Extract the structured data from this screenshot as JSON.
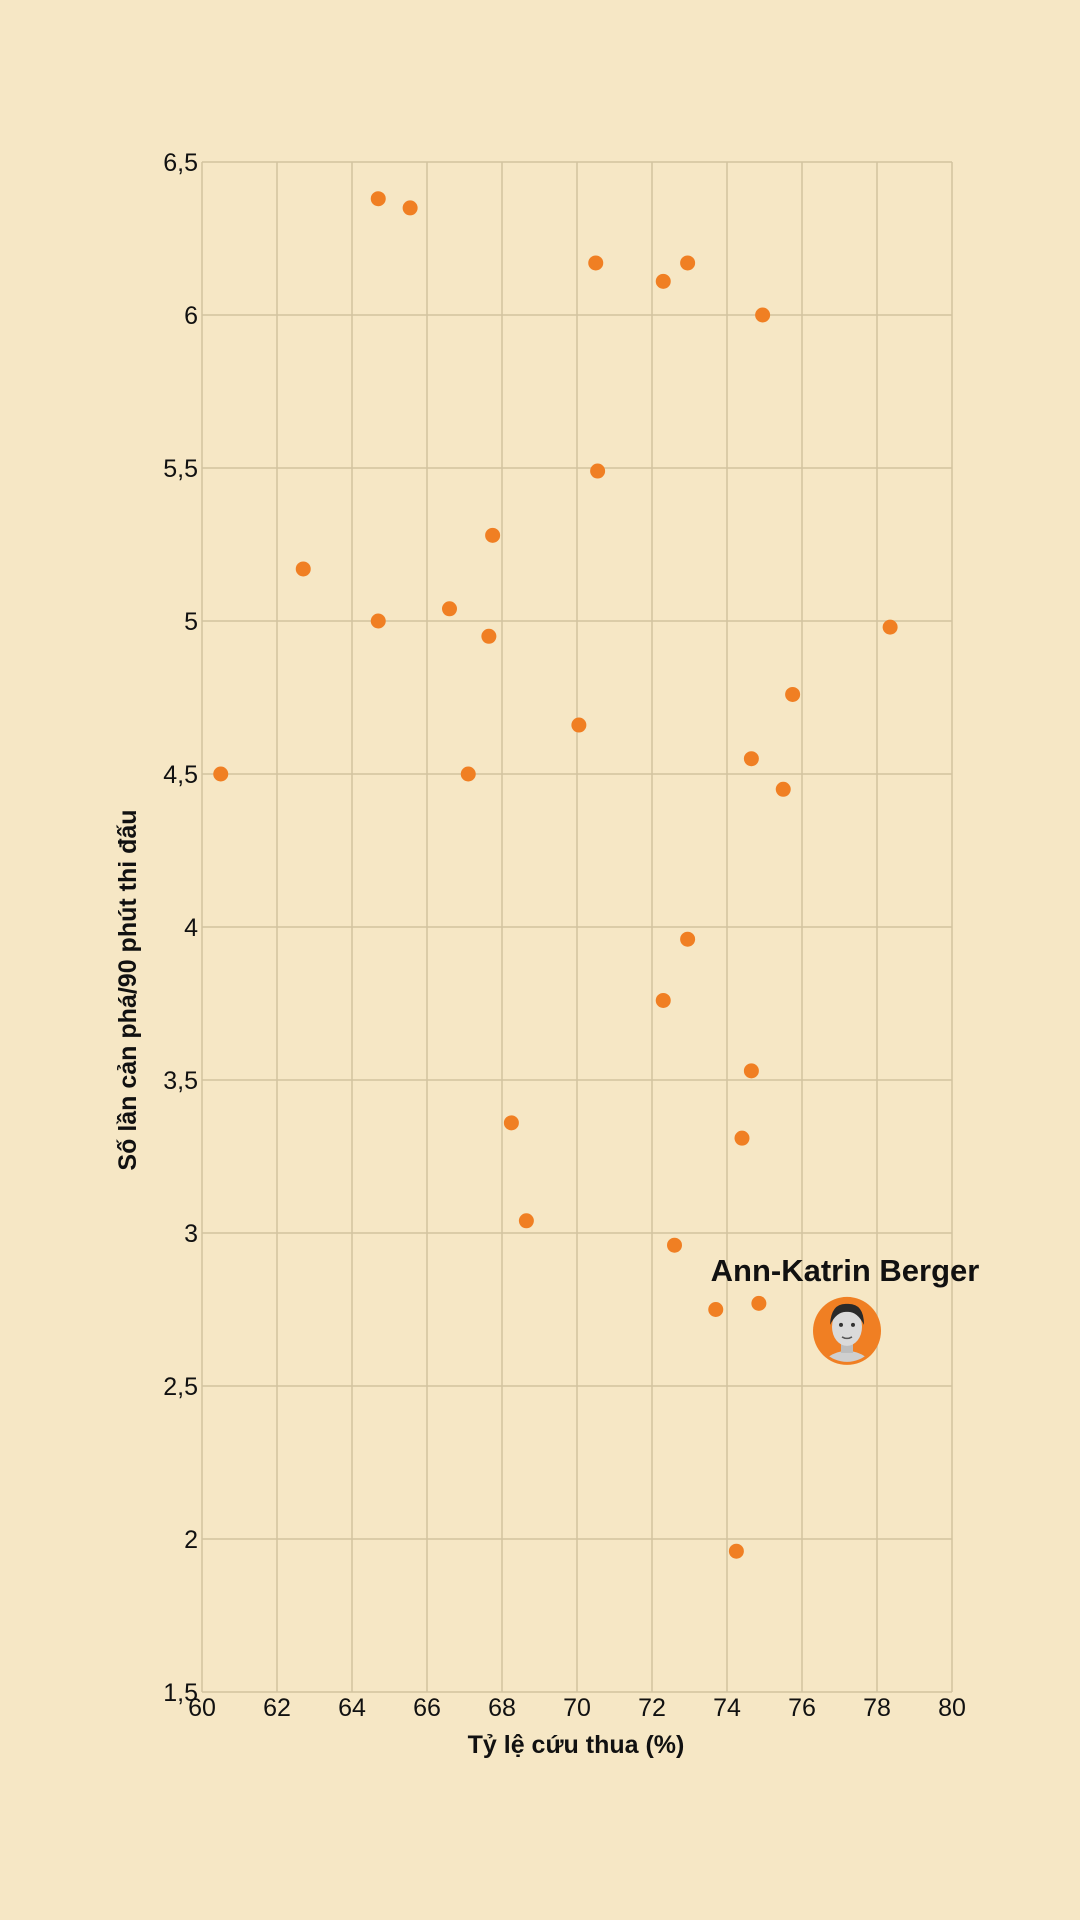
{
  "colors": {
    "background": "#f6e7c5",
    "grid": "#d2c39f",
    "point": "#f07f23",
    "text": "#111111"
  },
  "chart_data": {
    "type": "scatter",
    "title": "",
    "xlabel": "Tỷ lệ cứu thua (%)",
    "ylabel": "Số lần cản phá/90 phút thi đấu",
    "xlim": [
      60,
      80
    ],
    "ylim": [
      1.5,
      6.5
    ],
    "x_ticks": [
      60,
      62,
      64,
      66,
      68,
      70,
      72,
      74,
      76,
      78,
      80
    ],
    "y_ticks": [
      1.5,
      2,
      2.5,
      3,
      3.5,
      4,
      4.5,
      5,
      5.5,
      6,
      6.5
    ],
    "x_tick_labels": [
      "60",
      "62",
      "64",
      "66",
      "68",
      "70",
      "72",
      "74",
      "76",
      "78",
      "80"
    ],
    "y_tick_labels": [
      "1,5",
      "2",
      "2,5",
      "3",
      "3,5",
      "4",
      "4,5",
      "5",
      "5,5",
      "6",
      "6,5"
    ],
    "grid": true,
    "points": [
      {
        "x": 64.7,
        "y": 6.38
      },
      {
        "x": 65.55,
        "y": 6.35
      },
      {
        "x": 70.5,
        "y": 6.17
      },
      {
        "x": 72.3,
        "y": 6.11
      },
      {
        "x": 72.95,
        "y": 6.17
      },
      {
        "x": 74.95,
        "y": 6.0
      },
      {
        "x": 70.55,
        "y": 5.49
      },
      {
        "x": 67.75,
        "y": 5.28
      },
      {
        "x": 62.7,
        "y": 5.17
      },
      {
        "x": 64.7,
        "y": 5.0
      },
      {
        "x": 66.6,
        "y": 5.04
      },
      {
        "x": 67.65,
        "y": 4.95
      },
      {
        "x": 78.35,
        "y": 4.98
      },
      {
        "x": 75.75,
        "y": 4.76
      },
      {
        "x": 70.05,
        "y": 4.66
      },
      {
        "x": 74.65,
        "y": 4.55
      },
      {
        "x": 75.5,
        "y": 4.45
      },
      {
        "x": 60.5,
        "y": 4.5
      },
      {
        "x": 67.1,
        "y": 4.5
      },
      {
        "x": 72.95,
        "y": 3.96
      },
      {
        "x": 72.3,
        "y": 3.76
      },
      {
        "x": 74.65,
        "y": 3.53
      },
      {
        "x": 68.25,
        "y": 3.36
      },
      {
        "x": 74.4,
        "y": 3.31
      },
      {
        "x": 68.65,
        "y": 3.04
      },
      {
        "x": 72.6,
        "y": 2.96
      },
      {
        "x": 73.7,
        "y": 2.75
      },
      {
        "x": 74.85,
        "y": 2.77
      },
      {
        "x": 74.25,
        "y": 1.96
      }
    ],
    "highlight": {
      "label": "Ann-Katrin Berger",
      "x": 77.2,
      "y": 2.68,
      "icon": "player-portrait-icon"
    }
  }
}
